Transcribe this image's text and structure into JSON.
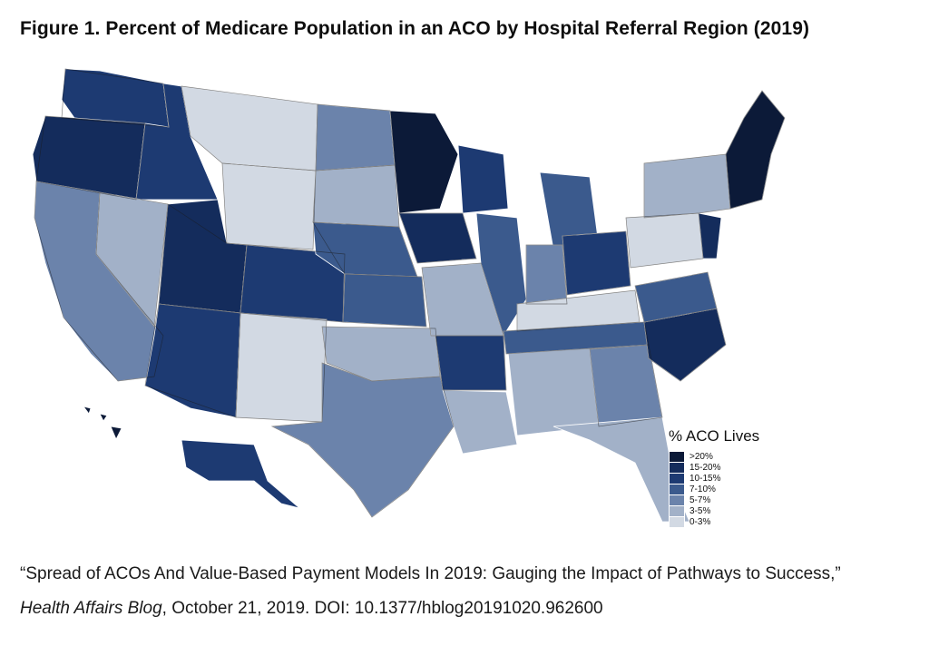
{
  "figure": {
    "title": "Figure 1. Percent of Medicare Population in an ACO by Hospital Referral Region (2019)"
  },
  "legend": {
    "title": "% ACO Lives",
    "items": [
      {
        "label": ">20%",
        "color": "#0c1a38"
      },
      {
        "label": "15-20%",
        "color": "#142c5c"
      },
      {
        "label": "10-15%",
        "color": "#1d3a72"
      },
      {
        "label": "7-10%",
        "color": "#3b5a8d"
      },
      {
        "label": "5-7%",
        "color": "#6b83ab"
      },
      {
        "label": "3-5%",
        "color": "#a2b1c8"
      },
      {
        "label": "0-3%",
        "color": "#d2d9e3"
      }
    ]
  },
  "citation": {
    "line1": "“Spread of ACOs And Value-Based Payment Models In 2019: Gauging the Impact of Pathways to Success,”",
    "journal": "Health Affairs Blog",
    "line2_rest": ", October 21, 2019. DOI: 10.1377/hblog20191020.962600"
  }
}
